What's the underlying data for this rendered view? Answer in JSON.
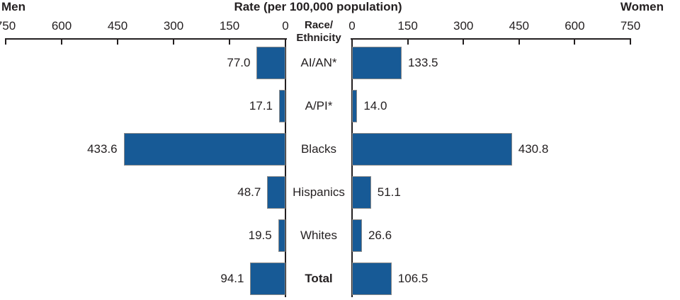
{
  "header": {
    "men_label": "Men",
    "title": "Rate (per 100,000 population)",
    "women_label": "Women",
    "center_label_line1": "Race/",
    "center_label_line2": "Ethnicity"
  },
  "chart_data": {
    "type": "bar",
    "subtype": "diverging-horizontal",
    "title": "Rate (per 100,000 population)",
    "center_axis_label": "Race/Ethnicity",
    "categories": [
      "AI/AN*",
      "A/PI*",
      "Blacks",
      "Hispanics",
      "Whites",
      "Total"
    ],
    "series": [
      {
        "name": "Men",
        "side": "left",
        "values": [
          77.0,
          17.1,
          433.6,
          48.7,
          19.5,
          94.1
        ]
      },
      {
        "name": "Women",
        "side": "right",
        "values": [
          133.5,
          14.0,
          430.8,
          51.1,
          26.6,
          106.5
        ]
      }
    ],
    "axis": {
      "min": 0,
      "max": 750,
      "tick_step": 150,
      "ticks": [
        0,
        150,
        300,
        450,
        600,
        750
      ]
    },
    "value_label_decimals": 1,
    "bold_categories": [
      "Total"
    ],
    "grid": false,
    "colors": {
      "bar_fill": "#175a96",
      "bar_border": "#8a8a8a",
      "axis": "#231f20",
      "text": "#231f20"
    }
  }
}
